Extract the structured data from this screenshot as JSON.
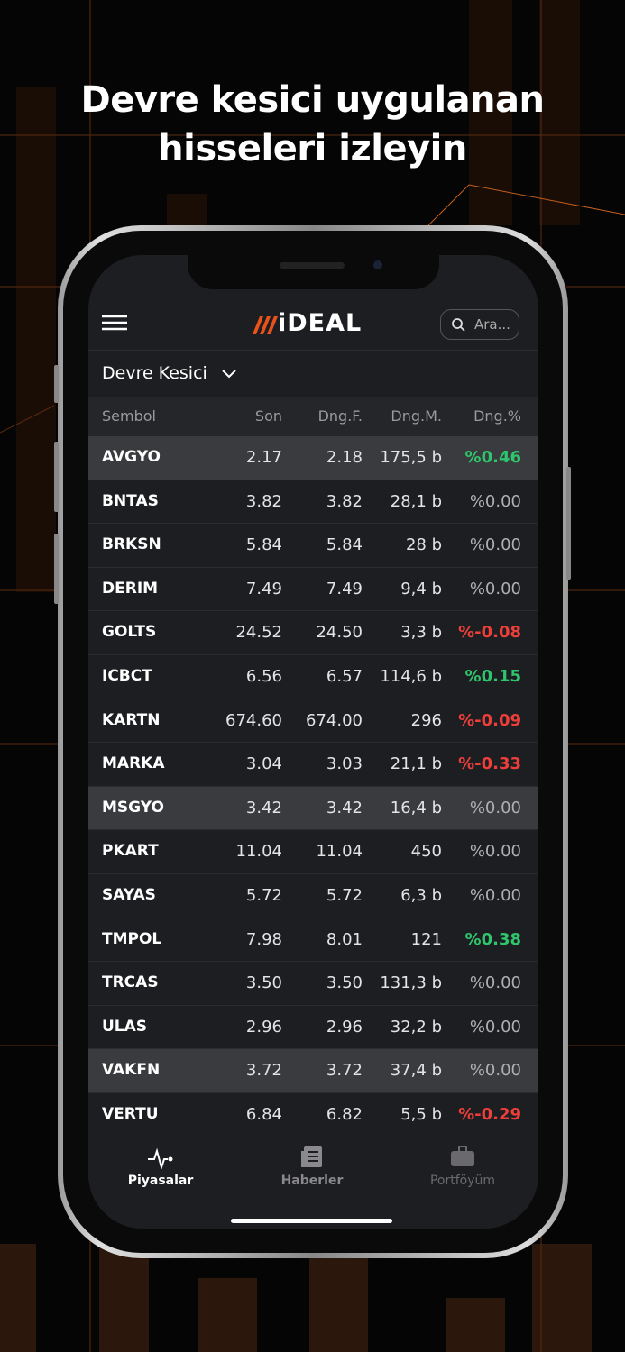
{
  "headline": {
    "line1": "Devre kesici uygulanan",
    "line2": "hisseleri izleyin"
  },
  "app": {
    "logo": "iDEAL",
    "search_placeholder": "Ara...",
    "list_title": "Devre Kesici"
  },
  "table": {
    "columns": [
      "Sembol",
      "Son",
      "Dng.F.",
      "Dng.M.",
      "Dng.%"
    ],
    "rows": [
      [
        "AVGYO",
        "2.17",
        "2.18",
        "175,5 b",
        "%0.46"
      ],
      [
        "BNTAS",
        "3.82",
        "3.82",
        "28,1 b",
        "%0.00"
      ],
      [
        "BRKSN",
        "5.84",
        "5.84",
        "28 b",
        "%0.00"
      ],
      [
        "DERIM",
        "7.49",
        "7.49",
        "9,4 b",
        "%0.00"
      ],
      [
        "GOLTS",
        "24.52",
        "24.50",
        "3,3 b",
        "%-0.08"
      ],
      [
        "ICBCT",
        "6.56",
        "6.57",
        "114,6 b",
        "%0.15"
      ],
      [
        "KARTN",
        "674.60",
        "674.00",
        "296",
        "%-0.09"
      ],
      [
        "MARKA",
        "3.04",
        "3.03",
        "21,1 b",
        "%-0.33"
      ],
      [
        "MSGYO",
        "3.42",
        "3.42",
        "16,4 b",
        "%0.00"
      ],
      [
        "PKART",
        "11.04",
        "11.04",
        "450",
        "%0.00"
      ],
      [
        "SAYAS",
        "5.72",
        "5.72",
        "6,3 b",
        "%0.00"
      ],
      [
        "TMPOL",
        "7.98",
        "8.01",
        "121",
        "%0.38"
      ],
      [
        "TRCAS",
        "3.50",
        "3.50",
        "131,3 b",
        "%0.00"
      ],
      [
        "ULAS",
        "2.96",
        "2.96",
        "32,2 b",
        "%0.00"
      ],
      [
        "VAKFN",
        "3.72",
        "3.72",
        "37,4 b",
        "%0.00"
      ],
      [
        "VERTU",
        "6.84",
        "6.82",
        "5,5 b",
        "%-0.29"
      ]
    ]
  },
  "nav": {
    "items": [
      "Piyasalar",
      "Haberler",
      "Portföyüm"
    ]
  }
}
